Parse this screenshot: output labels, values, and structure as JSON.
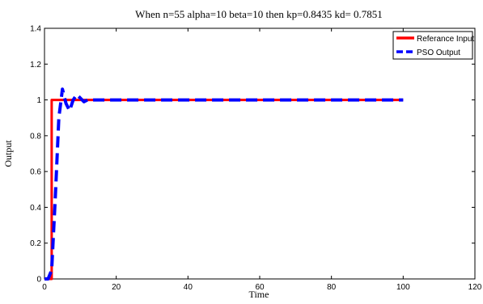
{
  "chart_data": {
    "type": "line",
    "title": "When n=55 alpha=10 beta=10 then kp=0.8435 kd= 0.7851",
    "xlabel": "Time",
    "ylabel": "Output",
    "xlim": [
      0,
      120
    ],
    "ylim": [
      0,
      1.4
    ],
    "xticks": [
      "0",
      "20",
      "40",
      "60",
      "80",
      "100",
      "120"
    ],
    "yticks": [
      "0",
      "0.2",
      "0.4",
      "0.6",
      "0.8",
      "1",
      "1.2",
      "1.4"
    ],
    "grid": false,
    "legend_position": "top-right",
    "series": [
      {
        "name": "Referance Input",
        "color": "#ff0000",
        "style": "solid",
        "x": [
          0,
          2,
          2,
          15,
          100
        ],
        "y": [
          0,
          0,
          1,
          1,
          1
        ]
      },
      {
        "name": "PSO Output",
        "color": "#0000ff",
        "style": "dashed",
        "x": [
          0,
          1,
          2,
          3,
          4,
          5,
          6,
          7,
          8,
          9,
          10,
          11,
          12,
          13,
          15,
          20,
          40,
          60,
          80,
          100
        ],
        "y": [
          0,
          0.0,
          0.05,
          0.45,
          0.9,
          1.06,
          0.98,
          0.94,
          1.0,
          1.03,
          1.01,
          0.99,
          1.0,
          1.0,
          1.0,
          1.0,
          1.0,
          1.0,
          1.0,
          1.0
        ]
      }
    ]
  }
}
